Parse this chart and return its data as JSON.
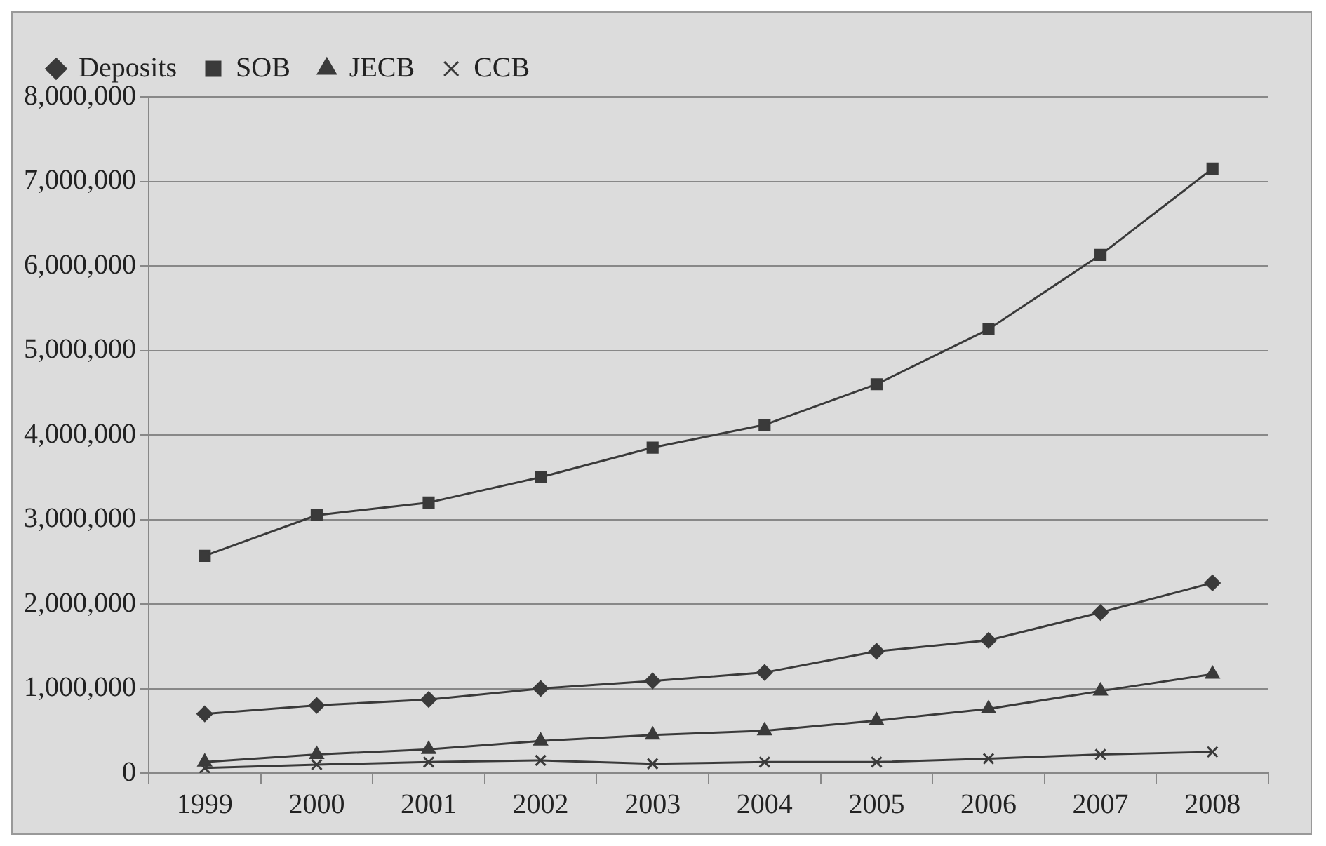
{
  "chart_data": {
    "type": "line",
    "categories": [
      "1999",
      "2000",
      "2001",
      "2002",
      "2003",
      "2004",
      "2005",
      "2006",
      "2007",
      "2008"
    ],
    "series": [
      {
        "name": "Deposits",
        "color": "#3a3a3a",
        "marker": "diamond",
        "values": [
          700000,
          800000,
          870000,
          1000000,
          1090000,
          1190000,
          1440000,
          1570000,
          1900000,
          2250000
        ]
      },
      {
        "name": "SOB",
        "color": "#3a3a3a",
        "marker": "square",
        "values": [
          2570000,
          3050000,
          3200000,
          3500000,
          3850000,
          4120000,
          4600000,
          5250000,
          6130000,
          7150000
        ]
      },
      {
        "name": "JECB",
        "color": "#3a3a3a",
        "marker": "triangle",
        "values": [
          130000,
          220000,
          280000,
          380000,
          450000,
          500000,
          620000,
          760000,
          970000,
          1170000
        ]
      },
      {
        "name": "CCB",
        "color": "#3a3a3a",
        "marker": "cross",
        "values": [
          60000,
          100000,
          130000,
          150000,
          110000,
          130000,
          130000,
          170000,
          220000,
          250000
        ]
      }
    ],
    "ylim": [
      0,
      8000000
    ],
    "yticks": [
      {
        "value": 0,
        "label": "0"
      },
      {
        "value": 1000000,
        "label": "1,000,000"
      },
      {
        "value": 2000000,
        "label": "2,000,000"
      },
      {
        "value": 3000000,
        "label": "3,000,000"
      },
      {
        "value": 4000000,
        "label": "4,000,000"
      },
      {
        "value": 5000000,
        "label": "5,000,000"
      },
      {
        "value": 6000000,
        "label": "6,000,000"
      },
      {
        "value": 7000000,
        "label": "7,000,000"
      },
      {
        "value": 8000000,
        "label": "8,000,000"
      }
    ],
    "grid": "y",
    "legend": "top left",
    "line_style": "solid"
  }
}
